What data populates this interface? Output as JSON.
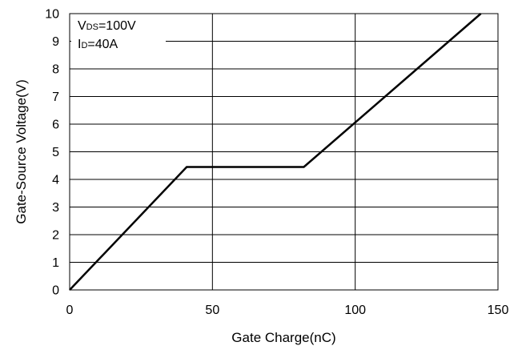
{
  "chart_data": {
    "type": "line",
    "title": "",
    "xlabel": "Gate Charge(nC)",
    "ylabel": "Gate-Source Voltage(V)",
    "xlim": [
      0,
      150
    ],
    "ylim": [
      0,
      10
    ],
    "xticks": [
      0,
      50,
      100,
      150
    ],
    "yticks": [
      0,
      1,
      2,
      3,
      4,
      5,
      6,
      7,
      8,
      9,
      10
    ],
    "grid": true,
    "series": [
      {
        "x": [
          0,
          41,
          82,
          144
        ],
        "y": [
          0,
          4.45,
          4.45,
          10
        ]
      }
    ],
    "annotations": [
      {
        "main": "V",
        "sub": "DS",
        "rest": "=100V"
      },
      {
        "main": "I",
        "sub": "D",
        "rest": "=40A"
      }
    ]
  }
}
